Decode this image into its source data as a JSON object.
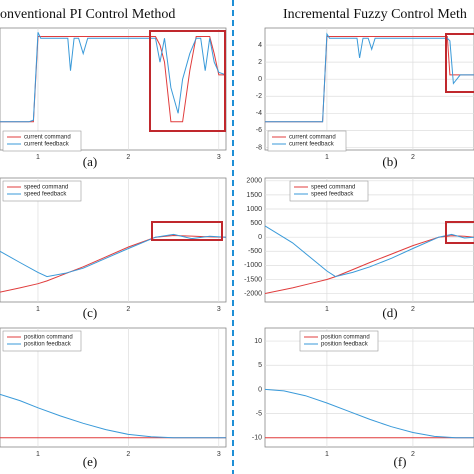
{
  "chart_data": [
    {
      "type": "line",
      "title": "onventional PI Control Method",
      "caption": "(a)",
      "x": [
        0.58,
        0.9,
        0.95,
        1.0,
        1.03,
        1.2,
        1.33,
        1.36,
        1.4,
        1.45,
        1.5,
        1.55,
        2.1,
        2.25,
        2.3,
        2.35,
        2.4,
        2.47,
        2.55,
        2.6,
        2.68,
        2.75,
        2.8,
        2.85,
        2.9,
        2.95,
        3.0,
        3.08
      ],
      "series": [
        {
          "name": "current command",
          "color": "#e03c3c",
          "values": [
            -5,
            -5,
            -5,
            5,
            5,
            5,
            5,
            5,
            5,
            5,
            5,
            5,
            5,
            5,
            5,
            4,
            2,
            -5,
            -5,
            -5,
            1,
            5,
            5,
            5,
            5,
            3,
            0.5,
            0.5
          ]
        },
        {
          "name": "current feedback",
          "color": "#3a9ad9",
          "values": [
            -5,
            -5,
            -4.8,
            5.5,
            4.8,
            4.8,
            4.8,
            1,
            4.8,
            4.8,
            3,
            4.8,
            4.8,
            4.8,
            4.8,
            2,
            4.8,
            -1,
            -4,
            0,
            3,
            4.8,
            4.8,
            1,
            4.8,
            2,
            0.8,
            0.5
          ]
        }
      ],
      "xlim": [
        0.58,
        3.08
      ],
      "ylim": [
        -8.3,
        6
      ],
      "xticks": [
        1,
        2,
        3
      ],
      "grid": true
    },
    {
      "type": "line",
      "title": "Incremental Fuzzy Control Meth",
      "caption": "(b)",
      "x": [
        0.28,
        0.95,
        1.0,
        1.03,
        1.2,
        1.35,
        1.38,
        1.42,
        1.48,
        1.52,
        1.56,
        2.0,
        2.3,
        2.4,
        2.43,
        2.47,
        2.55,
        2.71
      ],
      "series": [
        {
          "name": "current command",
          "color": "#e03c3c",
          "values": [
            -5,
            -5,
            5,
            5,
            5,
            5,
            5,
            5,
            5,
            5,
            5,
            5,
            5,
            5,
            0.5,
            0.5,
            0.5,
            0.5
          ]
        },
        {
          "name": "current feedback",
          "color": "#3a9ad9",
          "values": [
            -5,
            -5,
            5.3,
            4.8,
            4.8,
            4.8,
            2.5,
            4.8,
            4.8,
            3.5,
            4.8,
            4.8,
            4.8,
            4.8,
            4.5,
            -0.5,
            0.5,
            0.5
          ]
        }
      ],
      "xlim": [
        0.28,
        2.71
      ],
      "ylim": [
        -8.3,
        6
      ],
      "xticks": [
        1,
        2
      ],
      "yticks": [
        4,
        2,
        0,
        -2,
        -4,
        -6,
        -8
      ],
      "grid": true
    },
    {
      "type": "line",
      "caption": "(c)",
      "x": [
        0.58,
        0.8,
        1.0,
        1.1,
        1.3,
        1.5,
        1.75,
        2.0,
        2.3,
        2.5,
        2.7,
        2.9,
        3.08
      ],
      "series": [
        {
          "name": "speed command",
          "color": "#e03c3c",
          "values": [
            -1950,
            -1800,
            -1650,
            -1550,
            -1300,
            -1050,
            -700,
            -350,
            0,
            60,
            40,
            10,
            0
          ]
        },
        {
          "name": "speed feedback",
          "color": "#3a9ad9",
          "values": [
            -500,
            -900,
            -1250,
            -1400,
            -1280,
            -1100,
            -750,
            -400,
            0,
            100,
            -50,
            30,
            0
          ]
        }
      ],
      "xlim": [
        0.58,
        3.08
      ],
      "ylim": [
        -2300,
        2100
      ],
      "xticks": [
        1,
        2,
        3
      ],
      "grid": true
    },
    {
      "type": "line",
      "caption": "(d)",
      "x": [
        0.28,
        0.6,
        0.8,
        1.0,
        1.1,
        1.3,
        1.5,
        1.75,
        2.0,
        2.3,
        2.45,
        2.6,
        2.71
      ],
      "series": [
        {
          "name": "speed command",
          "color": "#e03c3c",
          "values": [
            -2000,
            -1800,
            -1650,
            -1500,
            -1400,
            -1150,
            -900,
            -600,
            -300,
            0,
            50,
            30,
            0
          ]
        },
        {
          "name": "speed feedback",
          "color": "#3a9ad9",
          "values": [
            400,
            -200,
            -700,
            -1200,
            -1400,
            -1250,
            -1050,
            -750,
            -400,
            0,
            100,
            -30,
            0
          ]
        }
      ],
      "xlim": [
        0.28,
        2.71
      ],
      "ylim": [
        -2300,
        2100
      ],
      "xticks": [
        1,
        2
      ],
      "yticks": [
        2000,
        1500,
        1000,
        500,
        0,
        -500,
        -1000,
        -1500,
        -2000
      ],
      "grid": true
    },
    {
      "type": "line",
      "caption": "(e)",
      "x": [
        0.58,
        0.8,
        1.0,
        1.25,
        1.5,
        1.75,
        2.0,
        2.25,
        2.5,
        2.75,
        3.08
      ],
      "series": [
        {
          "name": "position command",
          "color": "#e03c3c",
          "values": [
            -10,
            -10,
            -10,
            -10,
            -10,
            -10,
            -10,
            -10,
            -10,
            -10,
            -10
          ]
        },
        {
          "name": "position feedback",
          "color": "#3a9ad9",
          "values": [
            -1,
            -2.3,
            -3.8,
            -5.5,
            -7,
            -8.3,
            -9.3,
            -9.8,
            -10,
            -10,
            -10
          ]
        }
      ],
      "xlim": [
        0.58,
        3.08
      ],
      "ylim": [
        -11.9,
        12.7
      ],
      "xticks": [
        1,
        2,
        3
      ],
      "grid": true
    },
    {
      "type": "line",
      "caption": "(f)",
      "x": [
        0.28,
        0.5,
        0.75,
        1.0,
        1.25,
        1.5,
        1.75,
        2.0,
        2.25,
        2.5,
        2.71
      ],
      "series": [
        {
          "name": "position command",
          "color": "#e03c3c",
          "values": [
            -10,
            -10,
            -10,
            -10,
            -10,
            -10,
            -10,
            -10,
            -10,
            -10,
            -10
          ]
        },
        {
          "name": "position feedback",
          "color": "#3a9ad9",
          "values": [
            0,
            -0.3,
            -1.3,
            -2.8,
            -4.5,
            -6.2,
            -7.7,
            -8.9,
            -9.7,
            -10,
            -10
          ]
        }
      ],
      "xlim": [
        0.28,
        2.71
      ],
      "ylim": [
        -11.9,
        12.7
      ],
      "xticks": [
        1,
        2
      ],
      "yticks": [
        10,
        5,
        0,
        -5,
        -10
      ],
      "grid": true
    }
  ]
}
